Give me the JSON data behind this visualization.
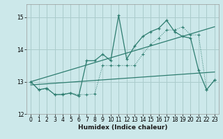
{
  "xlabel": "Humidex (Indice chaleur)",
  "bg_color": "#cce8ea",
  "grid_color": "#aacccc",
  "line_color": "#2e7d70",
  "xlim": [
    -0.5,
    23.5
  ],
  "ylim": [
    12,
    15.4
  ],
  "yticks": [
    12,
    13,
    14,
    15
  ],
  "xticks": [
    0,
    1,
    2,
    3,
    4,
    5,
    6,
    7,
    8,
    9,
    10,
    11,
    12,
    13,
    14,
    15,
    16,
    17,
    18,
    19,
    20,
    21,
    22,
    23
  ],
  "line1_x": [
    0,
    1,
    2,
    3,
    4,
    5,
    6,
    7,
    8,
    9,
    10,
    11,
    12,
    13,
    14,
    15,
    16,
    17,
    18,
    19,
    20,
    21,
    22,
    23
  ],
  "line1_y": [
    13.0,
    12.75,
    12.8,
    12.6,
    12.6,
    12.65,
    12.55,
    13.65,
    13.65,
    13.85,
    13.65,
    15.05,
    13.7,
    14.1,
    14.4,
    14.55,
    14.65,
    14.9,
    14.55,
    14.4,
    14.35,
    13.35,
    12.75,
    13.05
  ],
  "line2_x": [
    0,
    1,
    2,
    3,
    4,
    5,
    6,
    7,
    8,
    9,
    10,
    11,
    12,
    13,
    14,
    15,
    16,
    17,
    18,
    19,
    20,
    21,
    22,
    23
  ],
  "line2_y": [
    13.0,
    12.75,
    12.78,
    12.6,
    12.62,
    12.65,
    12.6,
    12.6,
    12.62,
    13.5,
    13.5,
    13.5,
    13.5,
    13.5,
    13.85,
    14.15,
    14.35,
    14.6,
    14.6,
    14.7,
    14.45,
    14.45,
    12.75,
    13.05
  ],
  "trend1_x": [
    0,
    23
  ],
  "trend1_y": [
    12.9,
    13.3
  ],
  "trend2_x": [
    0,
    23
  ],
  "trend2_y": [
    13.0,
    14.7
  ]
}
